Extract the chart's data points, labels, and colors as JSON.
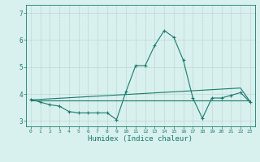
{
  "x": [
    0,
    1,
    2,
    3,
    4,
    5,
    6,
    7,
    8,
    9,
    10,
    11,
    12,
    13,
    14,
    15,
    16,
    17,
    18,
    19,
    20,
    21,
    22,
    23
  ],
  "y_line": [
    3.8,
    3.7,
    3.6,
    3.55,
    3.35,
    3.3,
    3.3,
    3.3,
    3.3,
    3.05,
    4.1,
    5.05,
    5.05,
    5.8,
    6.35,
    6.1,
    5.25,
    3.85,
    3.1,
    3.85,
    3.85,
    3.95,
    4.05,
    3.7
  ],
  "y_trend": [
    3.78,
    3.8,
    3.82,
    3.84,
    3.86,
    3.88,
    3.9,
    3.92,
    3.94,
    3.96,
    3.98,
    4.0,
    4.02,
    4.04,
    4.06,
    4.08,
    4.1,
    4.12,
    4.14,
    4.16,
    4.18,
    4.2,
    4.22,
    3.72
  ],
  "y_flat": [
    3.75,
    3.75,
    3.75,
    3.75,
    3.75,
    3.75,
    3.75,
    3.75,
    3.75,
    3.75,
    3.75,
    3.75,
    3.75,
    3.75,
    3.75,
    3.75,
    3.75,
    3.75,
    3.75,
    3.75,
    3.75,
    3.75,
    3.75,
    3.75
  ],
  "line_color": "#1a7a6e",
  "bg_color": "#d8f0ee",
  "grid_color": "#c0d8d4",
  "axis_color": "#1a7a6e",
  "xlabel": "Humidex (Indice chaleur)",
  "ylim": [
    2.8,
    7.3
  ],
  "xlim": [
    -0.5,
    23.5
  ],
  "yticks": [
    3,
    4,
    5,
    6,
    7
  ],
  "xticks": [
    0,
    1,
    2,
    3,
    4,
    5,
    6,
    7,
    8,
    9,
    10,
    11,
    12,
    13,
    14,
    15,
    16,
    17,
    18,
    19,
    20,
    21,
    22,
    23
  ]
}
